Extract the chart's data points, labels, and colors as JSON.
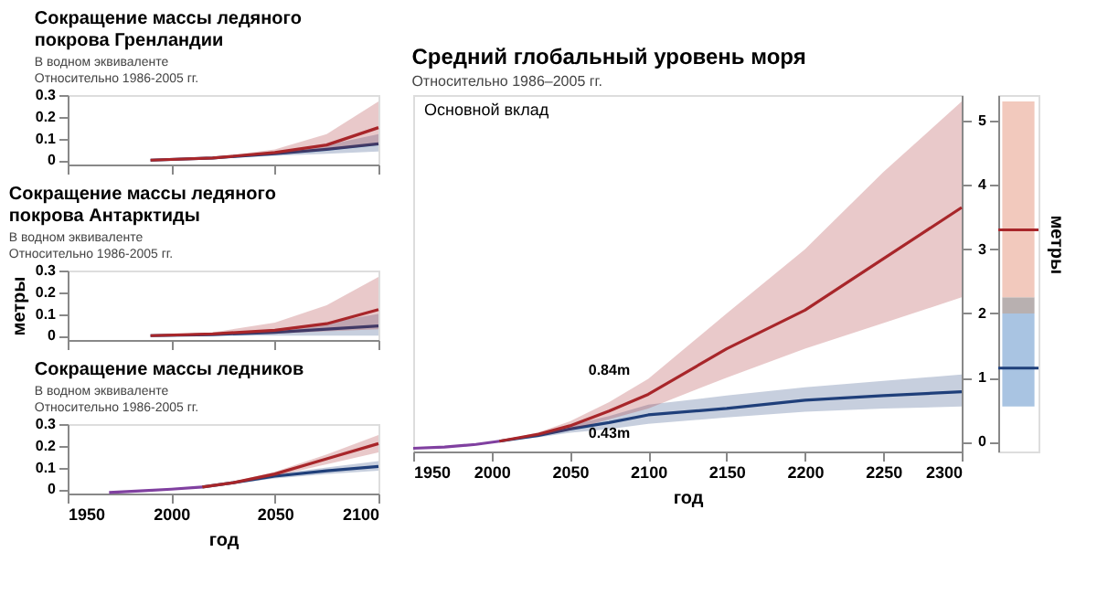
{
  "chart_data": [
    {
      "type": "line",
      "title": "Сокращение массы ледяного покрова Гренландии",
      "subtitle": "В водном эквиваленте\nОтносительно 1986-2005 гг.",
      "xlim": [
        1950,
        2100
      ],
      "ylim": [
        -0.02,
        0.3
      ],
      "yticks": [
        0,
        0.1,
        0.2,
        0.3
      ],
      "xticks": [
        1950,
        2000,
        2050,
        2100
      ],
      "tick_labels": "y",
      "grid": false,
      "series": [
        {
          "color": "#1f3f7a",
          "x": [
            1990,
            2020,
            2050,
            2075,
            2100
          ],
          "values": [
            0,
            0.01,
            0.03,
            0.05,
            0.075
          ],
          "lower": [
            0,
            0.008,
            0.02,
            0.03,
            0.04
          ],
          "upper": [
            0,
            0.012,
            0.04,
            0.07,
            0.12
          ]
        },
        {
          "color": "#a8262a",
          "x": [
            1990,
            2020,
            2050,
            2075,
            2100
          ],
          "values": [
            0,
            0.01,
            0.035,
            0.07,
            0.15
          ],
          "lower": [
            0,
            0.008,
            0.025,
            0.045,
            0.07
          ],
          "upper": [
            0,
            0.013,
            0.05,
            0.12,
            0.27
          ]
        }
      ]
    },
    {
      "type": "line",
      "title": "Сокращение массы ледяного покрова Антарктиды",
      "subtitle": "В водном эквиваленте\nОтносительно 1986-2005 гг.",
      "ylabel": "метры",
      "xlim": [
        1950,
        2100
      ],
      "ylim": [
        -0.02,
        0.3
      ],
      "yticks": [
        0,
        0.1,
        0.2,
        0.3
      ],
      "xticks": [
        1950,
        2000,
        2050,
        2100
      ],
      "tick_labels": "y",
      "grid": false,
      "series": [
        {
          "color": "#1f3f7a",
          "x": [
            1990,
            2020,
            2050,
            2075,
            2100
          ],
          "values": [
            0,
            0.005,
            0.015,
            0.03,
            0.045
          ],
          "lower": [
            0,
            0,
            0,
            0,
            0
          ],
          "upper": [
            0,
            0.01,
            0.03,
            0.06,
            0.1
          ]
        },
        {
          "color": "#a8262a",
          "x": [
            1990,
            2020,
            2050,
            2075,
            2100
          ],
          "values": [
            0,
            0.008,
            0.025,
            0.055,
            0.12
          ],
          "lower": [
            0,
            0.003,
            0.01,
            0.02,
            0.03
          ],
          "upper": [
            0,
            0.015,
            0.06,
            0.14,
            0.27
          ]
        }
      ]
    },
    {
      "type": "line",
      "title": "Сокращение массы ледников",
      "subtitle": "В водном эквиваленте\nОтносительно 1986-2005 гг.",
      "xlabel": "год",
      "xlim": [
        1950,
        2100
      ],
      "ylim": [
        -0.02,
        0.3
      ],
      "yticks": [
        0,
        0.1,
        0.2,
        0.3
      ],
      "xticks": [
        1950,
        2000,
        2050,
        2100
      ],
      "grid": false,
      "series": [
        {
          "color": "#8040a0",
          "x": [
            1970,
            1985,
            2000,
            2015
          ],
          "values": [
            -0.015,
            -0.008,
            0,
            0.01
          ]
        },
        {
          "color": "#1f3f7a",
          "x": [
            2015,
            2030,
            2050,
            2075,
            2100
          ],
          "values": [
            0.01,
            0.03,
            0.06,
            0.085,
            0.105
          ],
          "lower": [
            0.01,
            0.025,
            0.05,
            0.07,
            0.085
          ],
          "upper": [
            0.01,
            0.035,
            0.07,
            0.1,
            0.13
          ]
        },
        {
          "color": "#a8262a",
          "x": [
            2015,
            2030,
            2050,
            2075,
            2100
          ],
          "values": [
            0.01,
            0.03,
            0.07,
            0.14,
            0.21
          ],
          "lower": [
            0.01,
            0.025,
            0.06,
            0.115,
            0.17
          ],
          "upper": [
            0.01,
            0.035,
            0.08,
            0.16,
            0.25
          ]
        }
      ]
    },
    {
      "type": "line",
      "title": "Средний глобальный уровень моря",
      "subtitle": "Относительно 1986–2005 гг.",
      "xlabel": "год",
      "xlim": [
        1950,
        2300
      ],
      "ylim": [
        -0.15,
        5.4
      ],
      "xticks": [
        1950,
        2000,
        2050,
        2100,
        2150,
        2200,
        2250,
        2300
      ],
      "yticks": [
        0,
        1,
        2,
        3,
        4,
        5
      ],
      "tick_labels": "x",
      "grid": false,
      "annotations": [
        "Основной вклад",
        {
          "text": "0.84m",
          "x": 2100,
          "y": 0.84
        },
        {
          "text": "0.43m",
          "x": 2100,
          "y": 0.43
        }
      ],
      "series": [
        {
          "color": "#8040a0",
          "x": [
            1950,
            1970,
            1990,
            2005
          ],
          "values": [
            -0.1,
            -0.08,
            -0.04,
            0.01
          ]
        },
        {
          "color": "#1f3f7a",
          "x": [
            2005,
            2030,
            2050,
            2075,
            2100,
            2150,
            2200,
            2250,
            2300
          ],
          "values": [
            0.01,
            0.1,
            0.2,
            0.3,
            0.42,
            0.52,
            0.65,
            0.72,
            0.78
          ],
          "lower": [
            0.01,
            0.07,
            0.14,
            0.2,
            0.28,
            0.38,
            0.47,
            0.52,
            0.55
          ],
          "upper": [
            0.01,
            0.13,
            0.26,
            0.4,
            0.58,
            0.72,
            0.85,
            0.95,
            1.05
          ]
        },
        {
          "color": "#a8262a",
          "x": [
            2005,
            2030,
            2050,
            2075,
            2100,
            2150,
            2200,
            2250,
            2300
          ],
          "values": [
            0.01,
            0.12,
            0.25,
            0.48,
            0.74,
            1.45,
            2.05,
            2.85,
            3.65
          ],
          "lower": [
            0.01,
            0.09,
            0.18,
            0.35,
            0.52,
            1.0,
            1.45,
            1.85,
            2.25
          ],
          "upper": [
            0.01,
            0.15,
            0.32,
            0.62,
            0.98,
            2.0,
            3.0,
            4.2,
            5.3
          ]
        }
      ]
    },
    {
      "type": "bar",
      "categories": [
        null
      ],
      "ylabel": "метры",
      "ylim": [
        -0.15,
        5.4
      ],
      "yticks": [
        0,
        1,
        2,
        3,
        4,
        5
      ],
      "tick_labels": "y",
      "series": [
        {
          "color": "#a9c4e2",
          "base": [
            0.55
          ],
          "values": [
            1.45
          ]
        },
        {
          "color": "#b8b0b0",
          "base": [
            2.0
          ],
          "values": [
            0.25
          ]
        },
        {
          "color": "#f2c9bd",
          "base": [
            2.25
          ],
          "values": [
            3.05
          ]
        }
      ],
      "ref_lines": [
        {
          "axis": "y",
          "value": 3.3,
          "color": "#a8262a"
        },
        {
          "axis": "y",
          "value": 1.15,
          "color": "#1f3f7a"
        }
      ]
    }
  ]
}
